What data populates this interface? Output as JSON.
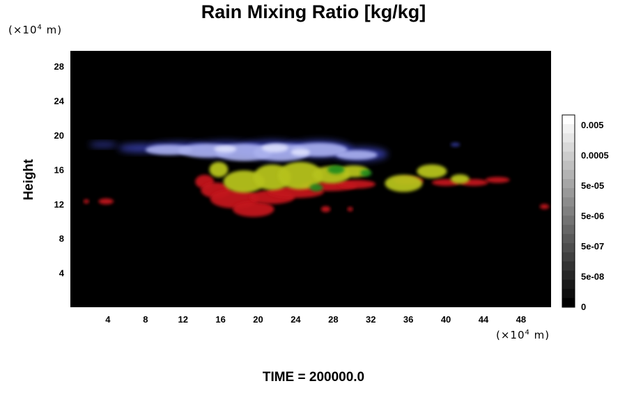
{
  "chart_data": {
    "type": "heatmap",
    "title": "Rain Mixing Ratio [kg/kg]",
    "xlabel": "",
    "ylabel": "Height",
    "x_unit": {
      "prefix": "(×10",
      "exp": "4",
      "suffix": " m)"
    },
    "y_unit": {
      "prefix": "(×10",
      "exp": "4",
      "suffix": " m)"
    },
    "x_ticks": [
      4,
      8,
      12,
      16,
      20,
      24,
      28,
      32,
      36,
      40,
      44,
      48
    ],
    "y_ticks": [
      4,
      8,
      12,
      16,
      20,
      24,
      28
    ],
    "xlim": [
      0,
      51.2
    ],
    "ylim": [
      0,
      29.8
    ],
    "grid": false,
    "background_color": "#000000",
    "colorbar": {
      "labels": [
        "0.005",
        "0.0005",
        "5e-05",
        "5e-06",
        "5e-07",
        "5e-08",
        "0"
      ],
      "levels": 21,
      "color_min": "#000000",
      "color_max": "#ffffff"
    },
    "features": [
      {
        "layer": "upper cloud",
        "color": "#8b93dc",
        "x_range": [
          5.5,
          33
        ],
        "height_range": [
          17,
          19.5
        ]
      },
      {
        "layer": "mid cloud",
        "color": "#b6c21e",
        "x_range": [
          14,
          42
        ],
        "height_range": [
          13.5,
          17
        ]
      },
      {
        "layer": "lower cloud",
        "color": "#c3161c",
        "x_range": [
          13.5,
          47
        ],
        "height_range": [
          10.5,
          15
        ]
      },
      {
        "layer": "isolated cells",
        "color": "#c3161c",
        "x_range": [
          1.5,
          51
        ],
        "height_range": [
          11,
          13
        ]
      }
    ]
  },
  "time": {
    "label": "TIME = 200000.0"
  }
}
